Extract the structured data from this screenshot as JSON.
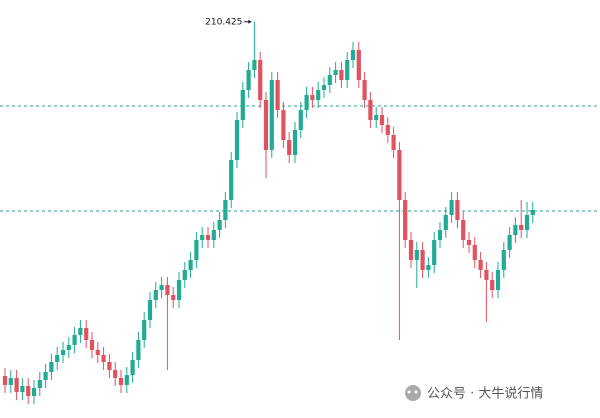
{
  "chart_data": {
    "type": "candlestick",
    "up_color": "#22ab94",
    "down_color": "#e0525f",
    "ylim": [
      170.8,
      212.6
    ],
    "hlines": [
      202.0,
      191.5
    ],
    "hline_color": "#2a9d8f",
    "watermark": "公众号 · 大牛说行情",
    "series": [
      {
        "open": [
          175.0,
          174.1,
          174.8,
          173.4,
          174.0,
          173.0,
          173.8,
          174.6,
          175.4,
          176.4,
          177.1,
          177.6,
          178.1,
          179.1,
          179.8,
          178.6,
          177.6,
          177.1,
          176.4,
          175.6,
          174.8,
          174.1,
          175.1,
          176.6,
          178.6,
          180.6,
          182.6,
          183.6,
          184.1,
          183.1,
          182.6,
          184.6,
          185.6,
          186.6,
          188.6,
          189.1,
          188.6,
          189.6,
          190.6,
          192.6,
          196.6,
          200.6,
          203.6,
          205.6,
          206.6,
          202.6,
          197.6,
          204.6,
          201.6,
          198.6,
          197.1,
          199.6,
          201.6,
          203.1,
          202.6,
          203.6,
          204.1,
          205.1,
          205.6,
          204.6,
          206.6,
          207.6,
          204.6,
          202.6,
          200.6,
          201.1,
          200.1,
          199.1,
          197.6,
          192.6,
          188.6,
          186.6,
          187.6,
          185.6,
          186.1,
          188.6,
          189.6,
          191.1,
          192.6,
          190.6,
          188.6,
          188.1,
          186.6,
          185.6,
          184.6,
          183.6,
          185.6,
          187.6,
          189.1,
          190.1,
          189.6,
          191.1
        ],
        "high": [
          175.8,
          175.6,
          175.6,
          174.8,
          174.8,
          174.6,
          175.4,
          176.2,
          177.2,
          177.9,
          178.4,
          178.9,
          179.9,
          180.6,
          180.6,
          179.4,
          178.4,
          177.9,
          177.2,
          176.4,
          175.6,
          175.9,
          177.4,
          179.4,
          181.4,
          183.4,
          184.4,
          184.9,
          184.9,
          183.9,
          185.4,
          186.4,
          187.4,
          189.4,
          189.9,
          189.9,
          190.4,
          191.4,
          193.4,
          197.4,
          201.4,
          204.4,
          206.4,
          210.425,
          207.4,
          203.4,
          205.4,
          205.4,
          202.4,
          199.4,
          200.4,
          202.4,
          203.9,
          203.9,
          204.4,
          204.9,
          205.9,
          206.4,
          206.4,
          207.4,
          208.4,
          208.4,
          205.4,
          203.4,
          201.9,
          201.9,
          200.9,
          199.9,
          198.4,
          193.4,
          189.4,
          188.4,
          188.4,
          186.9,
          189.4,
          190.4,
          191.9,
          193.4,
          193.4,
          191.4,
          189.4,
          188.9,
          187.4,
          186.4,
          185.4,
          186.4,
          188.4,
          189.9,
          190.9,
          192.6,
          192.4,
          192.4
        ],
        "low": [
          173.3,
          173.3,
          172.6,
          172.6,
          172.2,
          172.2,
          173.0,
          173.8,
          174.6,
          175.6,
          176.3,
          176.8,
          177.3,
          178.3,
          177.8,
          176.8,
          176.3,
          175.6,
          174.8,
          174.0,
          173.3,
          173.3,
          174.3,
          175.8,
          177.8,
          179.8,
          181.8,
          182.8,
          175.6,
          181.8,
          181.8,
          183.8,
          184.8,
          185.8,
          187.8,
          187.8,
          187.8,
          188.8,
          189.8,
          191.8,
          195.8,
          199.8,
          202.8,
          204.8,
          201.8,
          194.8,
          196.8,
          200.8,
          197.8,
          196.3,
          196.3,
          198.8,
          200.8,
          201.8,
          201.8,
          202.8,
          203.3,
          204.3,
          203.8,
          203.8,
          205.8,
          203.8,
          201.8,
          199.8,
          199.8,
          199.3,
          198.3,
          196.8,
          178.6,
          187.8,
          185.8,
          183.8,
          184.8,
          184.8,
          185.3,
          187.8,
          188.8,
          190.3,
          189.8,
          187.8,
          187.3,
          185.8,
          184.8,
          180.4,
          182.8,
          182.8,
          184.8,
          186.8,
          188.3,
          188.8,
          188.8,
          190.3
        ],
        "close": [
          174.1,
          174.8,
          173.4,
          174.0,
          173.0,
          173.8,
          174.6,
          175.4,
          176.4,
          177.1,
          177.6,
          178.1,
          179.1,
          179.8,
          178.6,
          177.6,
          177.1,
          176.4,
          175.6,
          174.8,
          174.1,
          175.1,
          176.6,
          178.6,
          180.6,
          182.6,
          183.6,
          184.1,
          183.1,
          182.6,
          184.6,
          185.6,
          186.6,
          188.6,
          189.1,
          188.6,
          189.6,
          190.6,
          192.6,
          196.6,
          200.6,
          203.6,
          205.6,
          206.6,
          202.6,
          197.6,
          204.6,
          201.6,
          198.6,
          197.1,
          199.6,
          201.6,
          203.1,
          202.6,
          203.6,
          204.1,
          205.1,
          205.6,
          204.6,
          206.6,
          207.6,
          204.6,
          202.6,
          200.6,
          201.1,
          200.1,
          199.1,
          197.6,
          192.6,
          188.6,
          186.6,
          187.6,
          185.6,
          186.1,
          188.6,
          189.6,
          191.1,
          192.6,
          190.6,
          188.6,
          188.1,
          186.6,
          185.6,
          184.6,
          183.6,
          185.6,
          187.6,
          189.1,
          190.1,
          189.6,
          191.1,
          191.6
        ]
      }
    ]
  }
}
